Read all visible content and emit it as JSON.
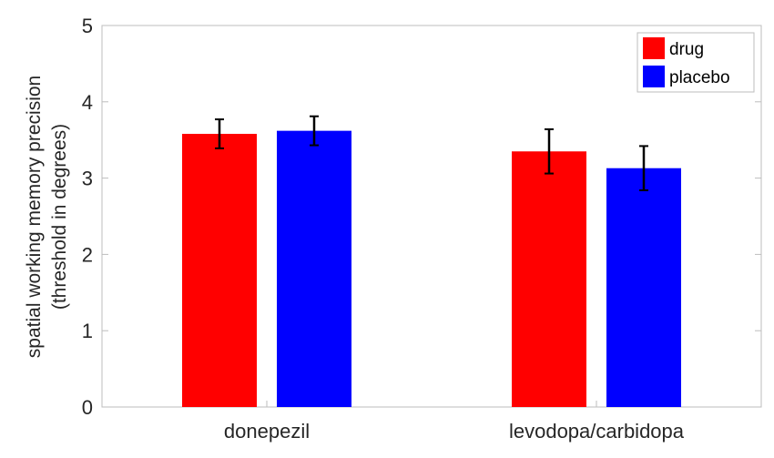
{
  "chart_data": {
    "type": "bar",
    "title": "",
    "xlabel": "",
    "ylabel": [
      "spatial working memory precision",
      "(threshold in degrees)"
    ],
    "categories": [
      "donepezil",
      "levodopa/carbidopa"
    ],
    "series": [
      {
        "name": "drug",
        "color": "#ff0000",
        "values": [
          3.58,
          3.35
        ],
        "errors": [
          0.19,
          0.29
        ]
      },
      {
        "name": "placebo",
        "color": "#0000ff",
        "values": [
          3.62,
          3.13
        ],
        "errors": [
          0.19,
          0.29
        ]
      }
    ],
    "ylim": [
      0,
      5
    ],
    "yticks": [
      0,
      1,
      2,
      3,
      4,
      5
    ],
    "grid": false,
    "legend": "top-right"
  }
}
